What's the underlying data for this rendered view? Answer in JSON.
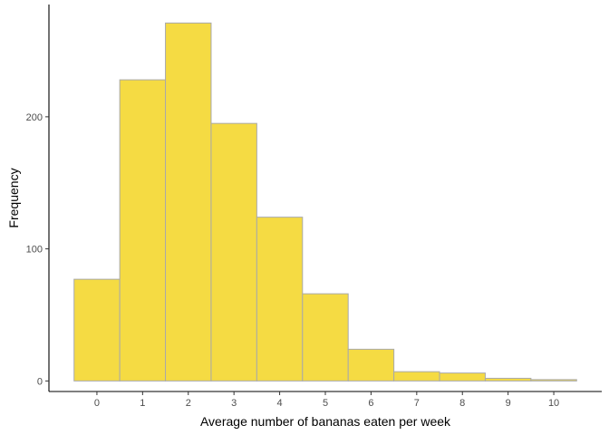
{
  "chart_data": {
    "type": "bar",
    "subtype": "histogram",
    "title": "",
    "xlabel": "Average number of bananas eaten per week",
    "ylabel": "Frequency",
    "categories": [
      "0",
      "1",
      "2",
      "3",
      "4",
      "5",
      "6",
      "7",
      "8",
      "9",
      "10"
    ],
    "x": [
      0,
      1,
      2,
      3,
      4,
      5,
      6,
      7,
      8,
      9,
      10
    ],
    "values": [
      77,
      228,
      271,
      195,
      124,
      66,
      24,
      7,
      6,
      2,
      1
    ],
    "y_ticks": [
      0,
      100,
      200
    ],
    "y_tick_labels": [
      "0",
      "100",
      "200"
    ],
    "ylim": [
      -8,
      285
    ],
    "xlim": [
      -1.05,
      11.05
    ],
    "grid": false,
    "legend": "none",
    "bar_fill": "#F5DB43",
    "bar_stroke": "#A9A9A9"
  }
}
